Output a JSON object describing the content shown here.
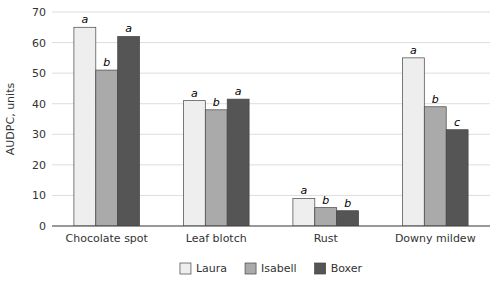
{
  "chart_data": {
    "type": "bar",
    "y_label": "AUDPC, units",
    "categories": [
      "Chocolate spot",
      "Leaf blotch",
      "Rust",
      "Downy mildew"
    ],
    "series": [
      {
        "name": "Laura",
        "color": "#eeeeee",
        "values": [
          65,
          41,
          9,
          55
        ],
        "annotations": [
          "a",
          "a",
          "a",
          "a"
        ]
      },
      {
        "name": "Isabell",
        "color": "#aaaaaa",
        "values": [
          51,
          38,
          6,
          39
        ],
        "annotations": [
          "b",
          "b",
          "b",
          "b"
        ]
      },
      {
        "name": "Boxer",
        "color": "#555555",
        "values": [
          62,
          41.5,
          5,
          31.5
        ],
        "annotations": [
          "a",
          "a",
          "b",
          "c"
        ]
      }
    ],
    "ylim": [
      0,
      70
    ],
    "yticks": [
      0,
      10,
      20,
      30,
      40,
      50,
      60,
      70
    ],
    "grid": true,
    "legend": "bottom"
  }
}
